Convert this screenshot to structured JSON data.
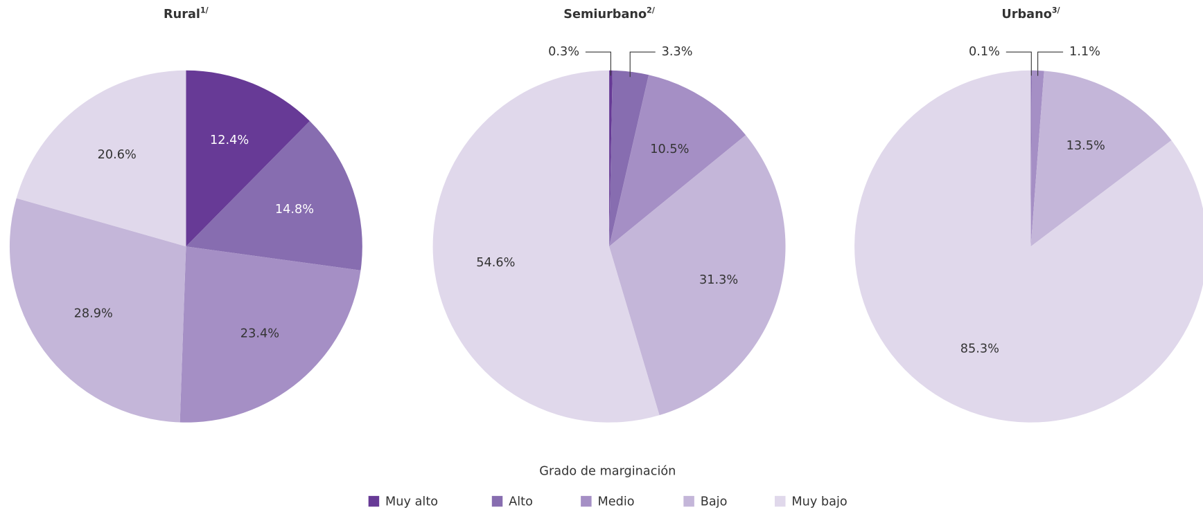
{
  "chart_data": [
    {
      "type": "pie",
      "title": "Rural",
      "title_note": "1/",
      "categories": [
        "Muy alto",
        "Alto",
        "Medio",
        "Bajo",
        "Muy bajo"
      ],
      "values": [
        12.4,
        14.8,
        23.4,
        28.9,
        20.6
      ],
      "value_labels": [
        "12.4%",
        "14.8%",
        "23.4%",
        "28.9%",
        "20.6%"
      ],
      "colors": [
        "#673a96",
        "#876db0",
        "#a58fc5",
        "#c4b6d9",
        "#e0d8eb"
      ]
    },
    {
      "type": "pie",
      "title": "Semiurbano",
      "title_note": "2/",
      "categories": [
        "Muy alto",
        "Alto",
        "Medio",
        "Bajo",
        "Muy bajo"
      ],
      "values": [
        0.3,
        3.3,
        10.5,
        31.3,
        54.6
      ],
      "value_labels": [
        "0.3%",
        "3.3%",
        "10.5%",
        "31.3%",
        "54.6%"
      ],
      "colors": [
        "#673a96",
        "#876db0",
        "#a58fc5",
        "#c4b6d9",
        "#e0d8eb"
      ]
    },
    {
      "type": "pie",
      "title": "Urbano",
      "title_note": "3/",
      "categories": [
        "Muy alto",
        "Alto",
        "Medio",
        "Bajo",
        "Muy bajo"
      ],
      "values": [
        null,
        0.1,
        1.1,
        13.5,
        85.3
      ],
      "value_labels": [
        null,
        "0.1%",
        "1.1%",
        "13.5%",
        "85.3%"
      ],
      "colors": [
        "#673a96",
        "#876db0",
        "#a58fc5",
        "#c4b6d9",
        "#e0d8eb"
      ]
    }
  ],
  "legend_title": "Grado de marginación"
}
